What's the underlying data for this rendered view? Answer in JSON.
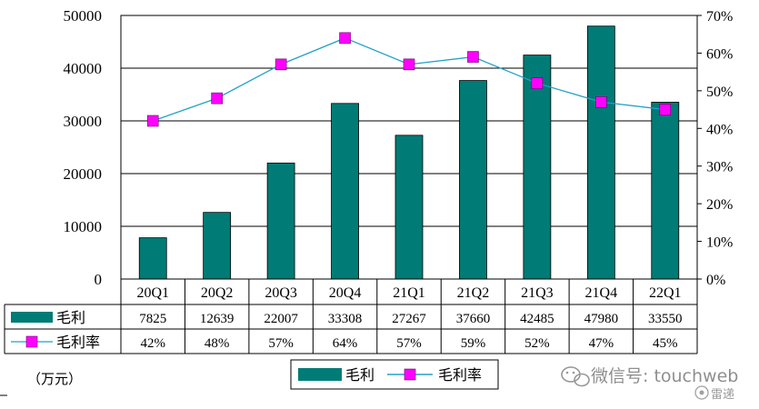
{
  "chart_data": {
    "type": "bar",
    "title": "",
    "categories": [
      "20Q1",
      "20Q2",
      "20Q3",
      "20Q4",
      "21Q1",
      "21Q2",
      "21Q3",
      "21Q4",
      "22Q1"
    ],
    "series": [
      {
        "name": "毛利",
        "kind": "bar",
        "axis": "left",
        "values": [
          7825,
          12639,
          22007,
          33308,
          27267,
          37660,
          42485,
          47980,
          33550
        ],
        "table_labels": [
          "7825",
          "12639",
          "22007",
          "33308",
          "27267",
          "37660",
          "42485",
          "47980",
          "33550"
        ]
      },
      {
        "name": "毛利率",
        "kind": "line",
        "axis": "right",
        "values": [
          0.42,
          0.48,
          0.57,
          0.64,
          0.57,
          0.59,
          0.52,
          0.47,
          0.45
        ],
        "table_labels": [
          "42%",
          "48%",
          "57%",
          "64%",
          "57%",
          "59%",
          "52%",
          "47%",
          "45%"
        ]
      }
    ],
    "left_axis": {
      "min": 0,
      "max": 50000,
      "ticks": [
        "0",
        "10000",
        "20000",
        "30000",
        "40000",
        "50000"
      ]
    },
    "right_axis": {
      "min": 0,
      "max": 0.7,
      "ticks": [
        "0%",
        "10%",
        "20%",
        "30%",
        "40%",
        "50%",
        "60%",
        "70%"
      ]
    },
    "unit_label": "（万元）",
    "legend": {
      "position": "bottom",
      "items": [
        "毛利",
        "毛利率"
      ]
    },
    "grid": true
  },
  "colors": {
    "bar": "#007b76",
    "line": "#22a1c7",
    "marker": "#ff00ff",
    "marker_stroke": "#6a006a"
  },
  "watermark": {
    "text": "微信号: touchweb",
    "badge": "雷递"
  }
}
